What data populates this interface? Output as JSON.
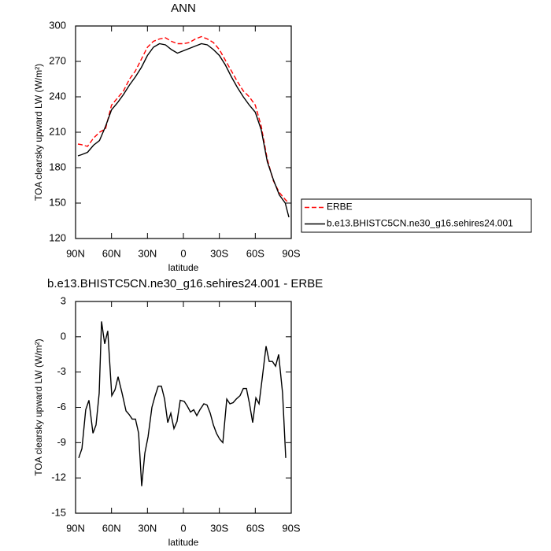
{
  "chart_data": [
    {
      "type": "line",
      "title": "ANN",
      "x_label": "latitude",
      "y_label": "TOA clearsky upward LW (W/m²)",
      "xlim": [
        90,
        -90
      ],
      "xticks": [
        {
          "value": 90,
          "label": "90N"
        },
        {
          "value": 60,
          "label": "60N"
        },
        {
          "value": 30,
          "label": "30N"
        },
        0,
        {
          "value": -30,
          "label": "30S"
        },
        {
          "value": -60,
          "label": "60S"
        },
        {
          "value": -90,
          "label": "90S"
        }
      ],
      "ylim": [
        120,
        300
      ],
      "yticks": [
        120,
        150,
        180,
        210,
        240,
        270,
        300
      ],
      "legend": "right",
      "x": [
        88,
        85,
        80,
        75,
        70,
        65,
        60,
        55,
        50,
        45,
        40,
        35,
        30,
        25,
        20,
        15,
        10,
        5,
        0,
        -5,
        -10,
        -15,
        -20,
        -25,
        -30,
        -35,
        -40,
        -45,
        -50,
        -55,
        -60,
        -65,
        -70,
        -75,
        -80,
        -85,
        -88
      ],
      "series": [
        {
          "name": "ERBE",
          "color": "#ff0000",
          "line_style": "dashed",
          "values": [
            200,
            199.5,
            198,
            205,
            210,
            213,
            233,
            239,
            245,
            255,
            262,
            272,
            282,
            287,
            289,
            290,
            287,
            285,
            285,
            286,
            289,
            291,
            289,
            286,
            280,
            271,
            262,
            253,
            245,
            240,
            233,
            215,
            187,
            169,
            159,
            153,
            150
          ]
        },
        {
          "name": "b.e13.BHISTC5CN.ne30_g16.sehires24.001",
          "color": "#000000",
          "line_style": "solid",
          "values": [
            190,
            191,
            193,
            199,
            203,
            215,
            229,
            235,
            242,
            250,
            257,
            265,
            275,
            282,
            285,
            284,
            280,
            277,
            279,
            281,
            283,
            285,
            284,
            280,
            275,
            267,
            257,
            248,
            240,
            233,
            227,
            212,
            185,
            170,
            157,
            150,
            138
          ]
        }
      ]
    },
    {
      "type": "line",
      "title": "b.e13.BHISTC5CN.ne30_g16.sehires24.001 - ERBE",
      "x_label": "latitude",
      "y_label": "TOA clearsky upward LW (W/m²)",
      "xlim": [
        90,
        -90
      ],
      "xticks": [
        {
          "value": 90,
          "label": "90N"
        },
        {
          "value": 60,
          "label": "60N"
        },
        {
          "value": 30,
          "label": "30N"
        },
        0,
        {
          "value": -30,
          "label": "30S"
        },
        {
          "value": -60,
          "label": "60S"
        },
        {
          "value": -90,
          "label": "90S"
        }
      ],
      "ylim": [
        -15,
        3
      ],
      "yticks": [
        -15,
        -12,
        -9,
        -6,
        -3,
        0,
        3
      ],
      "color": "#000000",
      "x": [
        87.4,
        84.7,
        81.5,
        78.8,
        75.5,
        72.9,
        70.3,
        68.3,
        65.7,
        63.1,
        59.8,
        57.1,
        54.5,
        51.2,
        47.9,
        45.3,
        42.7,
        40.0,
        37.4,
        34.8,
        32.2,
        29.5,
        26.3,
        23.6,
        21.0,
        18.4,
        15.7,
        13.1,
        10.5,
        7.9,
        5.3,
        2.6,
        -0.7,
        -3.3,
        -5.9,
        -8.6,
        -11.2,
        -13.8,
        -17.1,
        -19.7,
        -22.4,
        -25.0,
        -27.6,
        -30.3,
        -32.9,
        -36.2,
        -38.8,
        -41.5,
        -44.1,
        -47.3,
        -50.0,
        -52.6,
        -55.2,
        -57.8,
        -60.5,
        -63.1,
        -65.7,
        -69.0,
        -71.6,
        -74.3,
        -76.9,
        -79.5,
        -82.8,
        -85.4
      ],
      "values": [
        -10.3,
        -9.5,
        -6.2,
        -5.4,
        -8.2,
        -7.5,
        -4.8,
        1.3,
        -0.6,
        0.5,
        -5.0,
        -4.5,
        -3.4,
        -4.8,
        -6.3,
        -6.6,
        -7.0,
        -7.0,
        -8.2,
        -12.7,
        -9.9,
        -8.5,
        -6.0,
        -5.0,
        -4.2,
        -4.2,
        -5.3,
        -7.3,
        -6.5,
        -7.8,
        -7.2,
        -5.4,
        -5.5,
        -5.9,
        -6.4,
        -6.2,
        -6.7,
        -6.2,
        -5.7,
        -5.8,
        -6.5,
        -7.5,
        -8.2,
        -8.7,
        -9.0,
        -5.3,
        -5.7,
        -5.6,
        -5.3,
        -5.0,
        -4.4,
        -4.4,
        -5.7,
        -7.3,
        -5.2,
        -5.7,
        -3.6,
        -0.8,
        -2.1,
        -2.1,
        -2.5,
        -1.5,
        -4.8,
        -10.3
      ]
    }
  ]
}
